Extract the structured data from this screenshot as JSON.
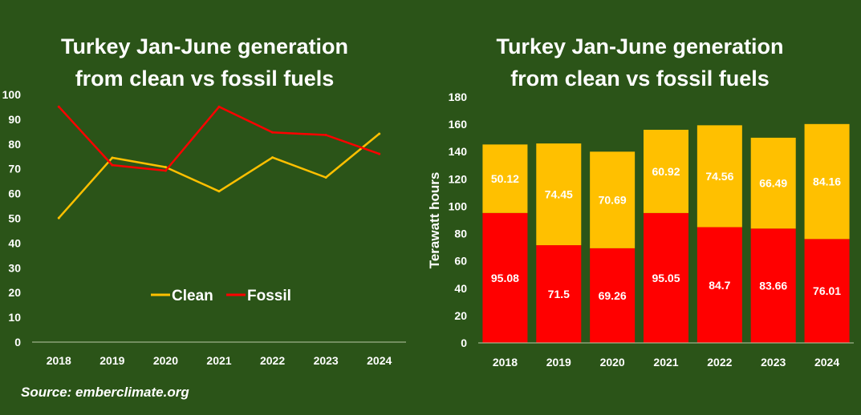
{
  "colors": {
    "background": "#2b5418",
    "clean": "#ffc000",
    "fossil": "#ff0000",
    "text": "#ffffff",
    "axis": "#b9c8a6"
  },
  "source": "Source: emberclimate.org",
  "chart_data": [
    {
      "type": "line",
      "title_line1": "Turkey Jan-June generation",
      "title_line2": "from clean vs fossil fuels",
      "xlabel": "",
      "ylabel": "",
      "categories": [
        "2018",
        "2019",
        "2020",
        "2021",
        "2022",
        "2023",
        "2024"
      ],
      "ylim": [
        0,
        100
      ],
      "yticks": [
        "0",
        "10",
        "20",
        "30",
        "40",
        "50",
        "60",
        "70",
        "80",
        "90",
        "100"
      ],
      "grid": false,
      "legend_position": "center",
      "series": [
        {
          "name": "Clean",
          "color": "#ffc000",
          "values": [
            50.12,
            74.45,
            70.69,
            60.92,
            74.56,
            66.49,
            84.16
          ]
        },
        {
          "name": "Fossil",
          "color": "#ff0000",
          "values": [
            95.08,
            71.5,
            69.26,
            95.05,
            84.7,
            83.66,
            76.01
          ]
        }
      ]
    },
    {
      "type": "bar",
      "stacked": true,
      "title_line1": "Turkey Jan-June generation",
      "title_line2": "from clean vs fossil fuels",
      "xlabel": "",
      "ylabel": "Terawatt hours",
      "categories": [
        "2018",
        "2019",
        "2020",
        "2021",
        "2022",
        "2023",
        "2024"
      ],
      "ylim": [
        0,
        180
      ],
      "yticks": [
        "0",
        "20",
        "40",
        "60",
        "80",
        "100",
        "120",
        "140",
        "160",
        "180"
      ],
      "grid": false,
      "series": [
        {
          "name": "Fossil",
          "color": "#ff0000",
          "values": [
            95.08,
            71.5,
            69.26,
            95.05,
            84.7,
            83.66,
            76.01
          ],
          "labels": [
            "95.08",
            "71.5",
            "69.26",
            "95.05",
            "84.7",
            "83.66",
            "76.01"
          ]
        },
        {
          "name": "Clean",
          "color": "#ffc000",
          "values": [
            50.12,
            74.45,
            70.69,
            60.92,
            74.56,
            66.49,
            84.16
          ],
          "labels": [
            "50.12",
            "74.45",
            "70.69",
            "60.92",
            "74.56",
            "66.49",
            "84.16"
          ]
        }
      ]
    }
  ]
}
